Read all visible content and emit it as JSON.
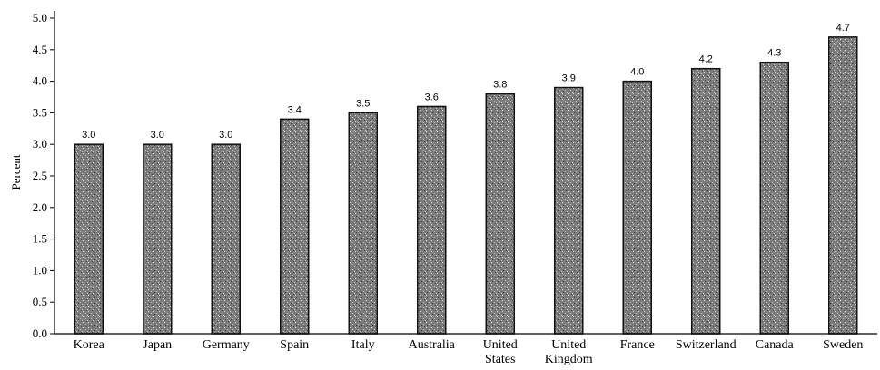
{
  "chart_data": {
    "type": "bar",
    "title": "",
    "xlabel": "",
    "ylabel": "Percent",
    "ylim": [
      0,
      5
    ],
    "yticks": [
      "0.0",
      "0.5",
      "1.0",
      "1.5",
      "2.0",
      "2.5",
      "3.0",
      "3.5",
      "4.0",
      "4.5",
      "5.0"
    ],
    "grid": false,
    "legend": "none",
    "categories": [
      [
        "Korea"
      ],
      [
        "Japan"
      ],
      [
        "Germany"
      ],
      [
        "Spain"
      ],
      [
        "Italy"
      ],
      [
        "Australia"
      ],
      [
        "United",
        "States"
      ],
      [
        "United",
        "Kingdom"
      ],
      [
        "France"
      ],
      [
        "Switzerland"
      ],
      [
        "Canada"
      ],
      [
        "Sweden"
      ]
    ],
    "values": [
      3.0,
      3.0,
      3.0,
      3.4,
      3.5,
      3.6,
      3.8,
      3.9,
      4.0,
      4.2,
      4.3,
      4.7
    ],
    "data_labels": [
      "3.0",
      "3.0",
      "3.0",
      "3.4",
      "3.5",
      "3.6",
      "3.8",
      "3.9",
      "4.0",
      "4.2",
      "4.3",
      "4.7"
    ],
    "bar_color": "#7a7a7a",
    "bar_edge_color": "#111111"
  }
}
